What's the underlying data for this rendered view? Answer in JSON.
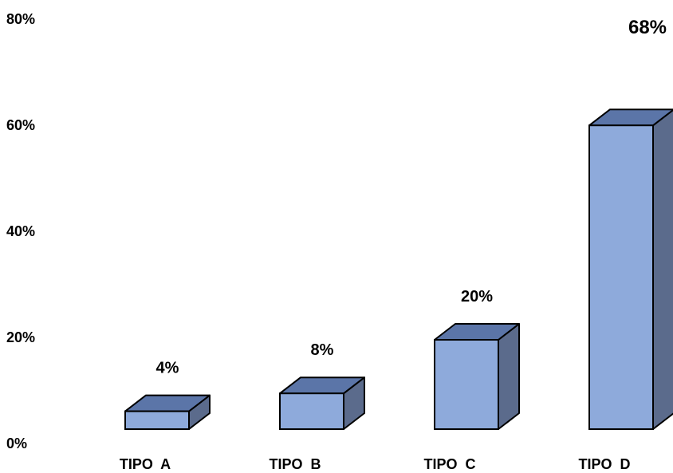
{
  "chart_data": {
    "type": "bar",
    "style": "3d-column",
    "title": "",
    "xlabel": "",
    "ylabel": "",
    "categories": [
      "TIPO  A",
      "TIPO  B",
      "TIPO  C",
      "TIPO  D"
    ],
    "values": [
      4,
      8,
      20,
      68
    ],
    "value_labels": [
      "4%",
      "8%",
      "20%",
      "68%"
    ],
    "yticks": [
      "0%",
      "20%",
      "40%",
      "60%",
      "80%"
    ],
    "ylim": [
      0,
      80
    ],
    "grid": false,
    "legend": "none",
    "colors": {
      "front": "#8EAADB",
      "top": "#5B75A8",
      "side": "#5B6B8C",
      "outline": "#000000"
    }
  }
}
